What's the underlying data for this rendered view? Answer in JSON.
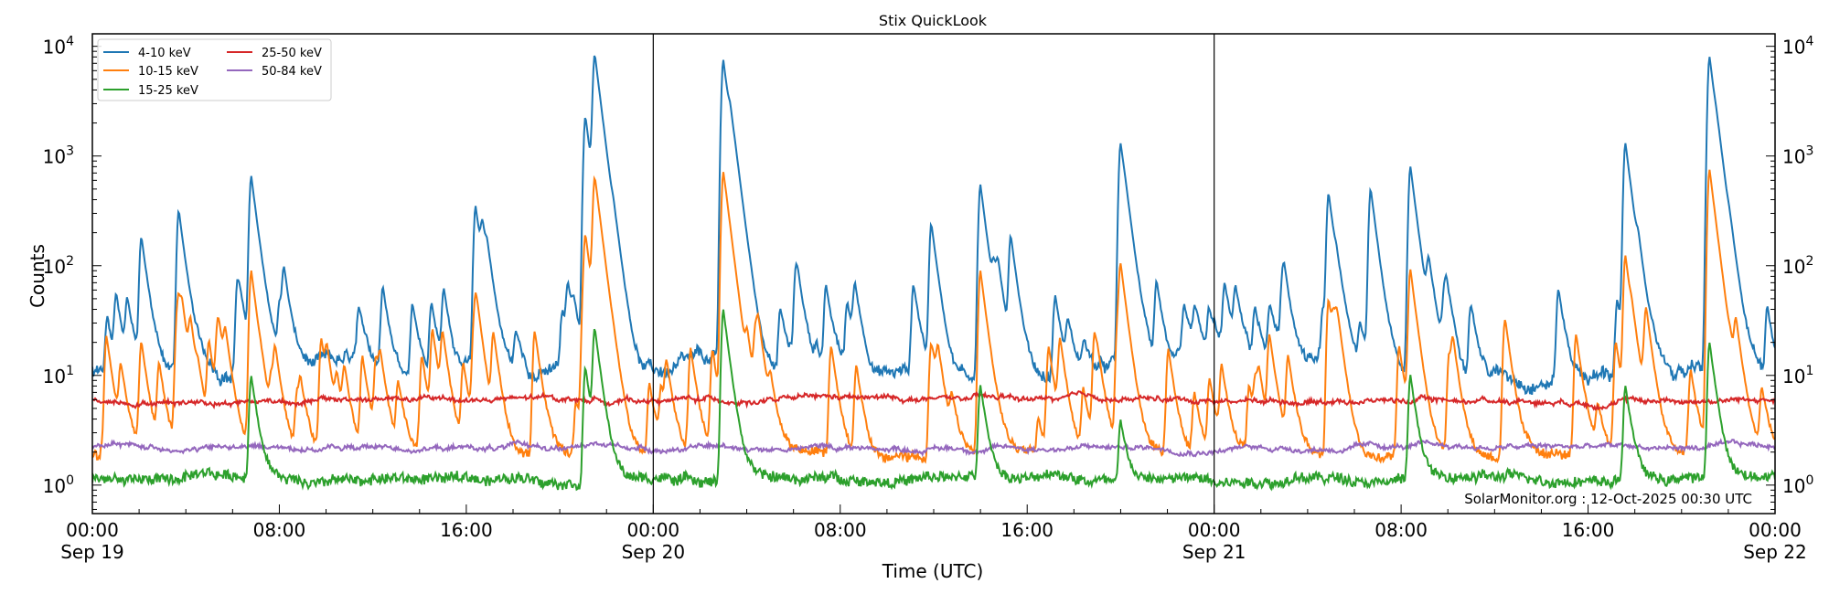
{
  "chart_data": {
    "type": "line",
    "title": "Stix QuickLook",
    "xlabel": "Time (UTC)",
    "ylabel": "Counts",
    "yscale": "log",
    "ylim": [
      0.55,
      13000
    ],
    "xlim_hours": [
      0,
      72
    ],
    "x_ticks": [
      {
        "hour": 0,
        "label": "00:00",
        "sub": "Sep 19"
      },
      {
        "hour": 8,
        "label": "08:00",
        "sub": ""
      },
      {
        "hour": 16,
        "label": "16:00",
        "sub": ""
      },
      {
        "hour": 24,
        "label": "00:00",
        "sub": "Sep 20"
      },
      {
        "hour": 32,
        "label": "08:00",
        "sub": ""
      },
      {
        "hour": 40,
        "label": "16:00",
        "sub": ""
      },
      {
        "hour": 48,
        "label": "00:00",
        "sub": "Sep 21"
      },
      {
        "hour": 56,
        "label": "08:00",
        "sub": ""
      },
      {
        "hour": 64,
        "label": "16:00",
        "sub": ""
      },
      {
        "hour": 72,
        "label": "00:00",
        "sub": "Sep 22"
      }
    ],
    "y_ticks": [
      {
        "value": 1,
        "label": "10",
        "exp": "0"
      },
      {
        "value": 10,
        "label": "10",
        "exp": "1"
      },
      {
        "value": 100,
        "label": "10",
        "exp": "2"
      },
      {
        "value": 1000,
        "label": "10",
        "exp": "3"
      },
      {
        "value": 10000,
        "label": "10",
        "exp": "4"
      }
    ],
    "day_boundaries_hours": [
      24,
      48
    ],
    "legend_position": "top-left",
    "annotation": "SolarMonitor.org : 12-Oct-2025 00:30 UTC",
    "series": [
      {
        "name": "4-10 keV",
        "color": "#1f77b4",
        "baseline": 11,
        "peaks": [
          [
            2.1,
            180
          ],
          [
            3.7,
            320
          ],
          [
            6.8,
            650
          ],
          [
            8.2,
            80
          ],
          [
            16.4,
            350
          ],
          [
            16.7,
            160
          ],
          [
            21.1,
            2300
          ],
          [
            21.5,
            8000
          ],
          [
            27.0,
            7500
          ],
          [
            27.3,
            700
          ],
          [
            35.9,
            240
          ],
          [
            38.0,
            550
          ],
          [
            39.3,
            180
          ],
          [
            44.0,
            1300
          ],
          [
            52.9,
            450
          ],
          [
            54.7,
            500
          ],
          [
            56.4,
            800
          ],
          [
            65.6,
            1300
          ],
          [
            69.2,
            8000
          ],
          [
            69.5,
            200
          ]
        ]
      },
      {
        "name": "10-15 keV",
        "color": "#ff7f0e",
        "baseline": 1.9,
        "peaks": [
          [
            2.1,
            20
          ],
          [
            3.7,
            40
          ],
          [
            6.8,
            90
          ],
          [
            16.4,
            40
          ],
          [
            21.1,
            180
          ],
          [
            21.5,
            600
          ],
          [
            27.0,
            700
          ],
          [
            38.0,
            90
          ],
          [
            44.0,
            90
          ],
          [
            52.9,
            50
          ],
          [
            56.4,
            90
          ],
          [
            65.6,
            120
          ],
          [
            69.2,
            750
          ]
        ]
      },
      {
        "name": "15-25 keV",
        "color": "#2ca02c",
        "baseline": 1.15,
        "peaks": [
          [
            6.8,
            10
          ],
          [
            21.1,
            12
          ],
          [
            21.5,
            25
          ],
          [
            27.0,
            40
          ],
          [
            38.0,
            8
          ],
          [
            44.0,
            4
          ],
          [
            56.4,
            10
          ],
          [
            65.6,
            8
          ],
          [
            69.2,
            20
          ]
        ]
      },
      {
        "name": "25-50 keV",
        "color": "#d62728",
        "baseline": 6.0,
        "peaks": []
      },
      {
        "name": "50-84 keV",
        "color": "#9467bd",
        "baseline": 2.2,
        "peaks": []
      }
    ]
  }
}
